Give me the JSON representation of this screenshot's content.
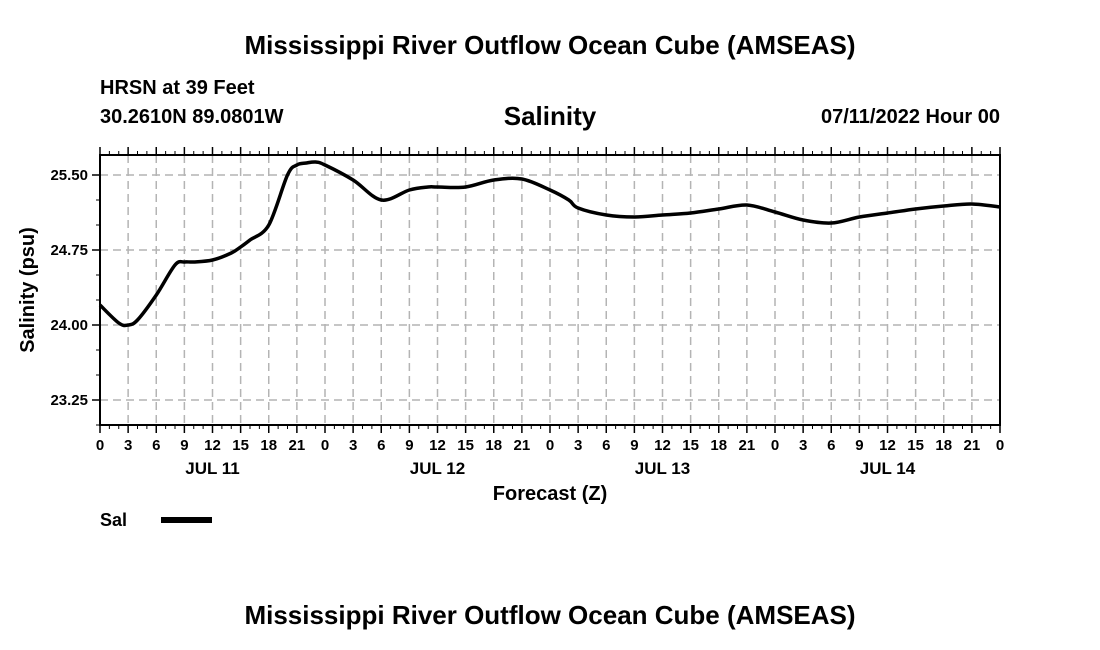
{
  "page": {
    "title_top": "Mississippi River Outflow Ocean Cube (AMSEAS)",
    "title_bottom": "Mississippi River Outflow Ocean Cube (AMSEAS)",
    "station_depth": "HRSN at 39 Feet",
    "coordinates": "30.2610N  89.0801W",
    "variable": "Salinity",
    "run_time": "07/11/2022 Hour 00"
  },
  "colors": {
    "line": "#000000",
    "grid": "#b4b4b4",
    "background": "#ffffff"
  },
  "chart_data": {
    "type": "line",
    "title": "Salinity",
    "xlabel": "Forecast (Z)",
    "ylabel": "Salinity (psu)",
    "ylim": [
      23.0,
      25.7
    ],
    "xlim": [
      0,
      96
    ],
    "grid": true,
    "yticks": [
      23.25,
      24.0,
      24.75,
      25.5
    ],
    "ytick_labels": [
      "23.25",
      "24.00",
      "24.75",
      "25.50"
    ],
    "xticks": [
      0,
      3,
      6,
      9,
      12,
      15,
      18,
      21,
      24,
      27,
      30,
      33,
      36,
      39,
      42,
      45,
      48,
      51,
      54,
      57,
      60,
      63,
      66,
      69,
      72,
      75,
      78,
      81,
      84,
      87,
      90,
      93,
      96
    ],
    "xtick_labels": [
      "0",
      "3",
      "6",
      "9",
      "12",
      "15",
      "18",
      "21",
      "0",
      "3",
      "6",
      "9",
      "12",
      "15",
      "18",
      "21",
      "0",
      "3",
      "6",
      "9",
      "12",
      "15",
      "18",
      "21",
      "0",
      "3",
      "6",
      "9",
      "12",
      "15",
      "18",
      "21",
      "0"
    ],
    "day_labels": [
      {
        "label": "JUL 11",
        "x": 12
      },
      {
        "label": "JUL 12",
        "x": 36
      },
      {
        "label": "JUL 13",
        "x": 60
      },
      {
        "label": "JUL 14",
        "x": 84
      }
    ],
    "legend": [
      {
        "name": "Sal",
        "position": "bottom-left"
      }
    ],
    "series": [
      {
        "name": "Sal",
        "x": [
          0,
          2,
          3,
          4,
          6,
          8,
          9,
          10,
          12,
          14,
          15,
          16,
          18,
          20,
          21,
          22,
          23,
          24,
          27,
          30,
          33,
          35,
          36,
          39,
          42,
          45,
          48,
          50,
          51,
          54,
          57,
          60,
          63,
          66,
          69,
          72,
          75,
          78,
          81,
          84,
          87,
          90,
          93,
          96
        ],
        "values": [
          24.2,
          24.02,
          24.0,
          24.05,
          24.3,
          24.6,
          24.63,
          24.63,
          24.65,
          24.72,
          24.78,
          24.85,
          25.0,
          25.5,
          25.6,
          25.62,
          25.63,
          25.6,
          25.45,
          25.25,
          25.35,
          25.38,
          25.38,
          25.38,
          25.45,
          25.46,
          25.35,
          25.25,
          25.17,
          25.1,
          25.08,
          25.1,
          25.12,
          25.16,
          25.2,
          25.13,
          25.05,
          25.02,
          25.08,
          25.12,
          25.16,
          25.19,
          25.21,
          25.18
        ]
      }
    ]
  }
}
